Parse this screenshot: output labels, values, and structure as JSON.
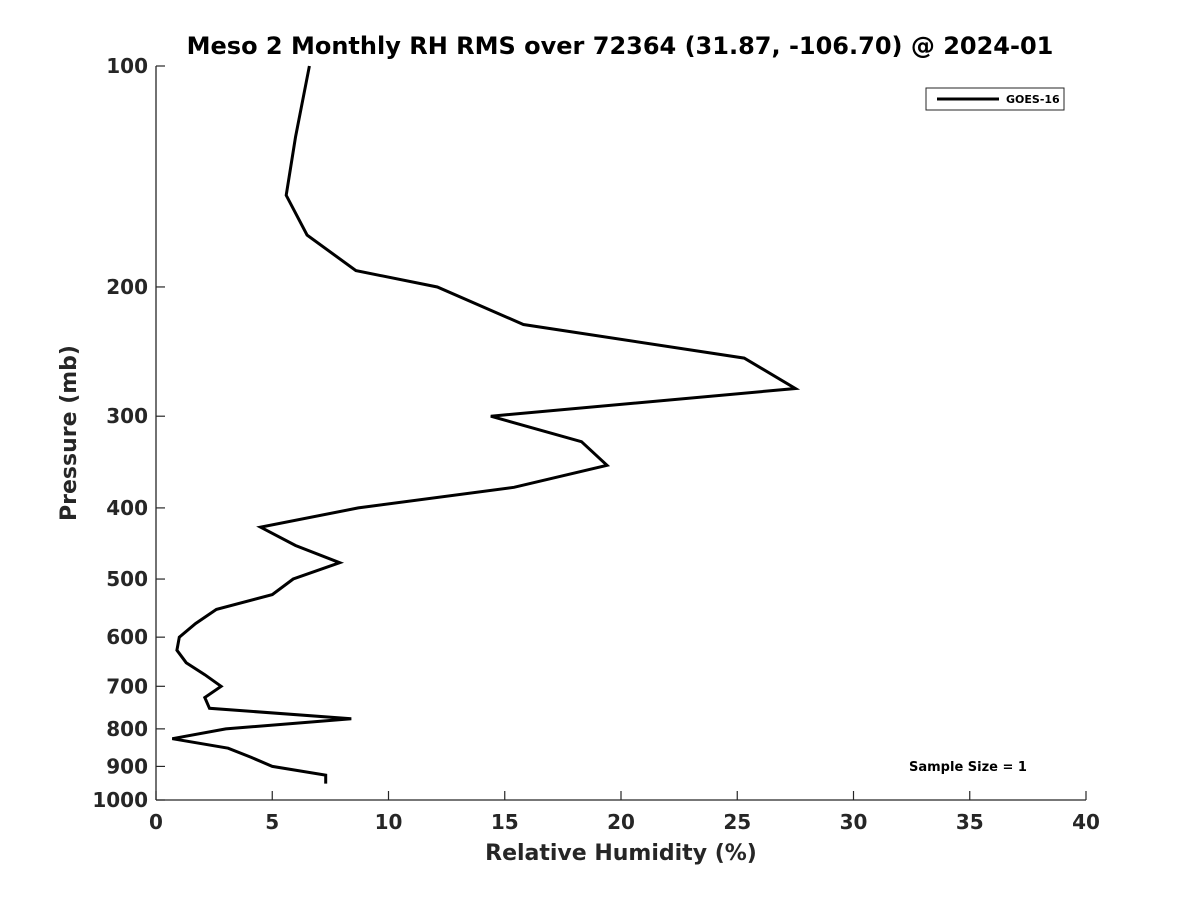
{
  "chart_data": {
    "type": "line",
    "title": "Meso 2 Monthly RH RMS over 72364 (31.87, -106.70) @ 2024-01",
    "xlabel": "Relative Humidity (%)",
    "ylabel": "Pressure (mb)",
    "xlim": [
      0,
      40
    ],
    "ylim": [
      100,
      1000
    ],
    "yscale": "log",
    "y_reversed": true,
    "x_ticks": [
      0,
      5,
      10,
      15,
      20,
      25,
      30,
      35,
      40
    ],
    "y_ticks": [
      100,
      200,
      300,
      400,
      500,
      600,
      700,
      800,
      900,
      1000
    ],
    "grid": false,
    "legend_position": "top-right",
    "annotation": "Sample Size = 1",
    "series": [
      {
        "name": "GOES-16",
        "color": "#000000",
        "points": [
          {
            "x": 6.6,
            "y": 100
          },
          {
            "x": 6.0,
            "y": 125
          },
          {
            "x": 5.6,
            "y": 150
          },
          {
            "x": 6.5,
            "y": 170
          },
          {
            "x": 8.6,
            "y": 190
          },
          {
            "x": 12.1,
            "y": 200
          },
          {
            "x": 15.8,
            "y": 225
          },
          {
            "x": 25.3,
            "y": 250
          },
          {
            "x": 27.5,
            "y": 275
          },
          {
            "x": 14.4,
            "y": 300
          },
          {
            "x": 18.3,
            "y": 325
          },
          {
            "x": 19.4,
            "y": 350
          },
          {
            "x": 15.4,
            "y": 375
          },
          {
            "x": 8.7,
            "y": 400
          },
          {
            "x": 4.5,
            "y": 425
          },
          {
            "x": 6.0,
            "y": 450
          },
          {
            "x": 7.9,
            "y": 475
          },
          {
            "x": 5.9,
            "y": 500
          },
          {
            "x": 5.0,
            "y": 525
          },
          {
            "x": 2.6,
            "y": 550
          },
          {
            "x": 1.7,
            "y": 575
          },
          {
            "x": 1.0,
            "y": 600
          },
          {
            "x": 0.9,
            "y": 625
          },
          {
            "x": 1.3,
            "y": 650
          },
          {
            "x": 2.1,
            "y": 675
          },
          {
            "x": 2.8,
            "y": 700
          },
          {
            "x": 2.1,
            "y": 725
          },
          {
            "x": 2.3,
            "y": 750
          },
          {
            "x": 8.4,
            "y": 775
          },
          {
            "x": 3.0,
            "y": 800
          },
          {
            "x": 0.7,
            "y": 825
          },
          {
            "x": 3.1,
            "y": 850
          },
          {
            "x": 4.1,
            "y": 875
          },
          {
            "x": 5.0,
            "y": 900
          },
          {
            "x": 7.3,
            "y": 925
          },
          {
            "x": 7.3,
            "y": 950
          }
        ]
      }
    ]
  }
}
